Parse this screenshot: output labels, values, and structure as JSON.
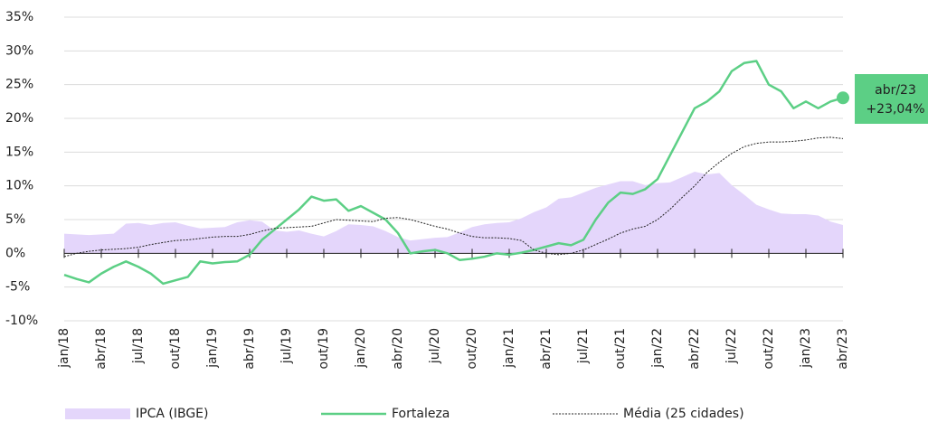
{
  "chart_data": {
    "type": "line",
    "categories": [
      "jan/18",
      null,
      null,
      "abr/18",
      null,
      null,
      "jul/18",
      null,
      null,
      "out/18",
      null,
      null,
      "jan/19",
      null,
      null,
      "abr/19",
      null,
      null,
      "jul/19",
      null,
      null,
      "out/19",
      null,
      null,
      "jan/20",
      null,
      null,
      "abr/20",
      null,
      null,
      "jul/20",
      null,
      null,
      "out/20",
      null,
      null,
      "jan/21",
      null,
      null,
      "abr/21",
      null,
      null,
      "jul/21",
      null,
      null,
      "out/21",
      null,
      null,
      "jan/22",
      null,
      null,
      "abr/22",
      null,
      null,
      "jul/22",
      null,
      null,
      "out/22",
      null,
      null,
      "jan/23",
      null,
      null,
      "abr/23"
    ],
    "series": [
      {
        "name": "IPCA (IBGE)",
        "style": "area",
        "color": "#e4d6fb",
        "values": [
          2.9,
          2.8,
          2.7,
          2.8,
          2.9,
          4.4,
          4.5,
          4.2,
          4.5,
          4.6,
          4.1,
          3.7,
          3.8,
          3.9,
          4.6,
          4.9,
          4.7,
          3.4,
          3.2,
          3.4,
          2.9,
          2.5,
          3.3,
          4.3,
          4.2,
          4.0,
          3.3,
          2.4,
          1.9,
          2.1,
          2.3,
          2.4,
          3.1,
          3.9,
          4.3,
          4.5,
          4.6,
          5.2,
          6.1,
          6.8,
          8.1,
          8.3,
          9.0,
          9.7,
          10.2,
          10.7,
          10.7,
          10.1,
          10.4,
          10.5,
          11.3,
          12.1,
          11.7,
          11.9,
          10.1,
          8.7,
          7.2,
          6.5,
          5.9,
          5.8,
          5.8,
          5.6,
          4.7,
          4.2
        ]
      },
      {
        "name": "Fortaleza",
        "style": "solid",
        "color": "#5ccf85",
        "values": [
          -3.2,
          -3.8,
          -4.3,
          -3.0,
          -2.0,
          -1.2,
          -2.0,
          -3.0,
          -4.5,
          -4.0,
          -3.5,
          -1.2,
          -1.5,
          -1.3,
          -1.2,
          -0.2,
          2.0,
          3.5,
          5.0,
          6.5,
          8.4,
          7.8,
          8.0,
          6.3,
          7.0,
          6.0,
          5.0,
          3.0,
          0.0,
          0.3,
          0.5,
          0.0,
          -1.0,
          -0.8,
          -0.5,
          0.0,
          -0.2,
          0.1,
          0.5,
          1.0,
          1.5,
          1.2,
          2.0,
          5.0,
          7.5,
          9.0,
          8.8,
          9.5,
          11.0,
          14.5,
          18.0,
          21.5,
          22.5,
          24.0,
          27.0,
          28.2,
          28.5,
          25.0,
          24.0,
          21.5,
          22.5,
          21.5,
          22.5,
          23.04
        ]
      },
      {
        "name": "Média (25 cidades)",
        "style": "dotted",
        "color": "#222222",
        "values": [
          -0.5,
          0.0,
          0.3,
          0.5,
          0.6,
          0.7,
          0.9,
          1.3,
          1.6,
          1.9,
          2.0,
          2.2,
          2.4,
          2.5,
          2.5,
          2.8,
          3.3,
          3.7,
          3.8,
          3.9,
          4.0,
          4.5,
          5.0,
          4.9,
          4.8,
          4.7,
          5.2,
          5.3,
          5.0,
          4.5,
          4.0,
          3.6,
          3.0,
          2.5,
          2.3,
          2.3,
          2.2,
          1.9,
          0.5,
          0.0,
          -0.2,
          0.0,
          0.5,
          1.3,
          2.1,
          3.0,
          3.6,
          4.0,
          5.0,
          6.5,
          8.3,
          10.0,
          12.0,
          13.5,
          14.8,
          15.8,
          16.3,
          16.5,
          16.5,
          16.6,
          16.8,
          17.1,
          17.2,
          17.0
        ]
      }
    ],
    "annotations": [
      "abr/23",
      "+23,04%"
    ],
    "ylim": [
      -10,
      35
    ],
    "yticks": [
      {
        "value": -10,
        "label": "-10%"
      },
      {
        "value": -5,
        "label": "-5%"
      },
      {
        "value": 0,
        "label": "0%"
      },
      {
        "value": 5,
        "label": "5%"
      },
      {
        "value": 10,
        "label": "10%"
      },
      {
        "value": 15,
        "label": "15%"
      },
      {
        "value": 20,
        "label": "20%"
      },
      {
        "value": 25,
        "label": "25%"
      },
      {
        "value": 30,
        "label": "30%"
      },
      {
        "value": 35,
        "label": "35%"
      }
    ],
    "grid": true,
    "legend": "bottom"
  }
}
